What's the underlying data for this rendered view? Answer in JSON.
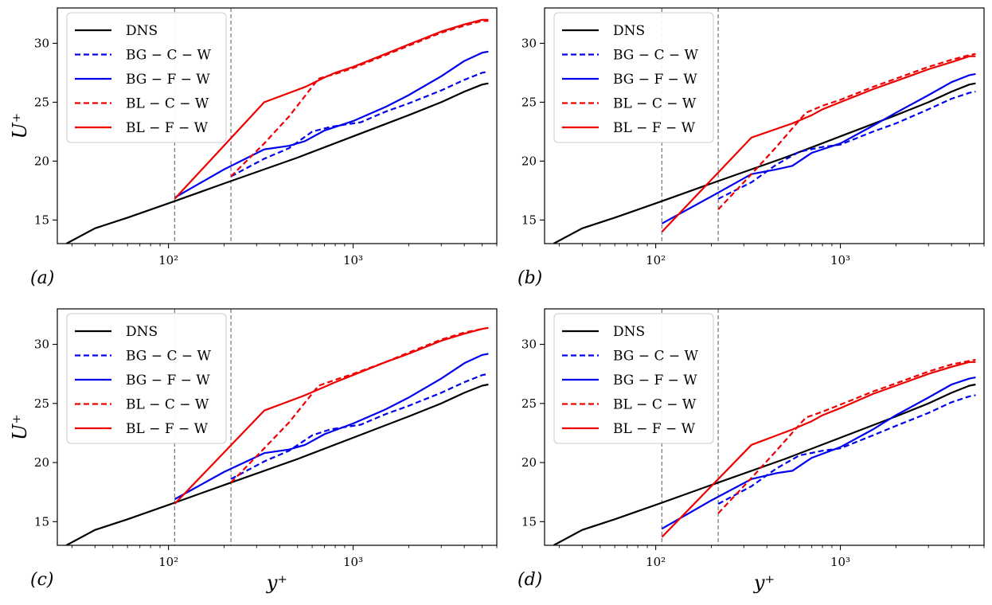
{
  "figure": {
    "ylabel": "U⁺",
    "xlabel": "y⁺"
  },
  "colors": {
    "DNS": "#000000",
    "blue": "#0000ee",
    "red": "#ee0000",
    "guide": "#7f7f7f"
  },
  "legend": [
    {
      "label": "DNS",
      "color": "#000000",
      "dash": "solid"
    },
    {
      "label": "BG − C − W",
      "color": "#0000ee",
      "dash": "dashed"
    },
    {
      "label": "BG − F − W",
      "color": "#0000ee",
      "dash": "solid"
    },
    {
      "label": "BL − C − W",
      "color": "#ee0000",
      "dash": "dashed"
    },
    {
      "label": "BL − F − W",
      "color": "#ee0000",
      "dash": "solid"
    }
  ],
  "chart_data": [
    {
      "panel": "(a)",
      "type": "line",
      "xscale": "log",
      "xlim": [
        25,
        6000
      ],
      "ylim": [
        13,
        33
      ],
      "xticks": [
        {
          "value": 100,
          "label": "10²"
        },
        {
          "value": 1000,
          "label": "10³"
        }
      ],
      "yticks": [
        15,
        20,
        25,
        30
      ],
      "xlabel": "",
      "ylabel": "U⁺",
      "vlines": [
        108,
        218
      ],
      "series": [
        {
          "name": "DNS",
          "x": [
            28,
            40,
            60,
            108,
            200,
            500,
            1000,
            2000,
            3000,
            4000,
            5000,
            5400
          ],
          "y": [
            13.0,
            14.3,
            15.2,
            16.6,
            18.1,
            20.3,
            22.1,
            23.9,
            25.0,
            25.9,
            26.5,
            26.6
          ]
        },
        {
          "name": "BG − C − W",
          "x": [
            218,
            330,
            450,
            600,
            750,
            900,
            1100,
            1500,
            2000,
            3000,
            4000,
            5000,
            5400
          ],
          "y": [
            18.7,
            20.2,
            21.1,
            22.5,
            22.9,
            23.1,
            23.3,
            24.2,
            24.9,
            26.0,
            26.9,
            27.5,
            27.6
          ]
        },
        {
          "name": "BG − F − W",
          "x": [
            108,
            200,
            330,
            450,
            550,
            700,
            1000,
            1500,
            2000,
            3000,
            4000,
            5000,
            5400
          ],
          "y": [
            16.9,
            19.3,
            21.0,
            21.3,
            21.7,
            22.6,
            23.4,
            24.6,
            25.6,
            27.2,
            28.5,
            29.2,
            29.3
          ]
        },
        {
          "name": "BL − C − W",
          "x": [
            218,
            330,
            450,
            650,
            800,
            1000,
            1500,
            2000,
            3000,
            4000,
            5000,
            5400
          ],
          "y": [
            18.7,
            21.5,
            23.8,
            27.0,
            27.4,
            27.9,
            29.0,
            29.8,
            30.9,
            31.5,
            31.9,
            31.9
          ]
        },
        {
          "name": "BL − F − W",
          "x": [
            108,
            330,
            550,
            700,
            800,
            1000,
            1500,
            2000,
            3000,
            4000,
            5000,
            5400
          ],
          "y": [
            16.8,
            25.0,
            26.3,
            27.1,
            27.5,
            28.0,
            29.1,
            29.9,
            31.0,
            31.6,
            32.0,
            32.0
          ]
        }
      ]
    },
    {
      "panel": "(b)",
      "type": "line",
      "xscale": "log",
      "xlim": [
        25,
        6000
      ],
      "ylim": [
        13,
        33
      ],
      "xticks": [
        {
          "value": 100,
          "label": "10²"
        },
        {
          "value": 1000,
          "label": "10³"
        }
      ],
      "yticks": [
        15,
        20,
        25,
        30
      ],
      "xlabel": "",
      "ylabel": "",
      "vlines": [
        108,
        218
      ],
      "series": [
        {
          "name": "DNS",
          "x": [
            28,
            40,
            60,
            108,
            200,
            500,
            1000,
            2000,
            3000,
            4000,
            5000,
            5400
          ],
          "y": [
            13.0,
            14.3,
            15.2,
            16.6,
            18.1,
            20.3,
            22.1,
            23.9,
            25.0,
            25.9,
            26.5,
            26.6
          ]
        },
        {
          "name": "BG − C − W",
          "x": [
            218,
            330,
            450,
            600,
            800,
            1000,
            1500,
            2000,
            3000,
            4000,
            5000,
            5400
          ],
          "y": [
            16.8,
            18.2,
            19.7,
            20.8,
            21.2,
            21.4,
            22.5,
            23.2,
            24.4,
            25.3,
            25.8,
            25.9
          ]
        },
        {
          "name": "BG − F − W",
          "x": [
            108,
            200,
            330,
            450,
            550,
            700,
            1000,
            1500,
            2000,
            3000,
            4000,
            5000,
            5400
          ],
          "y": [
            14.7,
            17.0,
            18.9,
            19.3,
            19.6,
            20.7,
            21.5,
            23.0,
            24.1,
            25.6,
            26.7,
            27.3,
            27.4
          ]
        },
        {
          "name": "BL − C − W",
          "x": [
            218,
            330,
            450,
            650,
            800,
            1000,
            1500,
            2000,
            3000,
            4000,
            5000,
            5400
          ],
          "y": [
            15.9,
            18.9,
            21.2,
            24.1,
            24.7,
            25.2,
            26.3,
            27.0,
            28.0,
            28.6,
            29.0,
            29.1
          ]
        },
        {
          "name": "BL − F − W",
          "x": [
            108,
            330,
            550,
            700,
            800,
            1000,
            1500,
            2000,
            3000,
            4000,
            5000,
            5400
          ],
          "y": [
            14.0,
            22.0,
            23.2,
            23.9,
            24.4,
            25.0,
            26.1,
            26.8,
            27.8,
            28.4,
            28.9,
            28.9
          ]
        }
      ]
    },
    {
      "panel": "(c)",
      "type": "line",
      "xscale": "log",
      "xlim": [
        25,
        6000
      ],
      "ylim": [
        13,
        33
      ],
      "xticks": [
        {
          "value": 100,
          "label": "10²"
        },
        {
          "value": 1000,
          "label": "10³"
        }
      ],
      "yticks": [
        15,
        20,
        25,
        30
      ],
      "xlabel": "y⁺",
      "ylabel": "U⁺",
      "vlines": [
        108,
        218
      ],
      "series": [
        {
          "name": "DNS",
          "x": [
            28,
            40,
            60,
            108,
            200,
            500,
            1000,
            2000,
            3000,
            4000,
            5000,
            5400
          ],
          "y": [
            13.0,
            14.3,
            15.2,
            16.6,
            18.1,
            20.3,
            22.1,
            23.9,
            25.0,
            25.9,
            26.5,
            26.6
          ]
        },
        {
          "name": "BG − C − W",
          "x": [
            218,
            330,
            450,
            600,
            750,
            900,
            1100,
            1500,
            2000,
            3000,
            4000,
            5000,
            5400
          ],
          "y": [
            18.6,
            20.1,
            21.0,
            22.3,
            22.8,
            23.0,
            23.2,
            24.1,
            24.8,
            25.9,
            26.8,
            27.4,
            27.5
          ]
        },
        {
          "name": "BG − F − W",
          "x": [
            108,
            200,
            330,
            450,
            550,
            700,
            1000,
            1500,
            2000,
            3000,
            4000,
            5000,
            5400
          ],
          "y": [
            16.9,
            19.2,
            20.8,
            21.1,
            21.5,
            22.4,
            23.3,
            24.5,
            25.5,
            27.1,
            28.4,
            29.1,
            29.2
          ]
        },
        {
          "name": "BL − C − W",
          "x": [
            218,
            330,
            450,
            650,
            800,
            1000,
            1500,
            2000,
            3000,
            4000,
            5000,
            5400
          ],
          "y": [
            18.3,
            21.2,
            23.4,
            26.5,
            27.0,
            27.5,
            28.5,
            29.3,
            30.4,
            31.0,
            31.3,
            31.4
          ]
        },
        {
          "name": "BL − F − W",
          "x": [
            108,
            330,
            550,
            700,
            800,
            1000,
            1500,
            2000,
            3000,
            4000,
            5000,
            5400
          ],
          "y": [
            16.5,
            24.4,
            25.7,
            26.4,
            26.8,
            27.4,
            28.5,
            29.2,
            30.3,
            30.9,
            31.3,
            31.4
          ]
        }
      ]
    },
    {
      "panel": "(d)",
      "type": "line",
      "xscale": "log",
      "xlim": [
        25,
        6000
      ],
      "ylim": [
        13,
        33
      ],
      "xticks": [
        {
          "value": 100,
          "label": "10²"
        },
        {
          "value": 1000,
          "label": "10³"
        }
      ],
      "yticks": [
        15,
        20,
        25,
        30
      ],
      "xlabel": "y⁺",
      "ylabel": "",
      "vlines": [
        108,
        218
      ],
      "series": [
        {
          "name": "DNS",
          "x": [
            28,
            40,
            60,
            108,
            200,
            500,
            1000,
            2000,
            3000,
            4000,
            5000,
            5400
          ],
          "y": [
            13.0,
            14.3,
            15.2,
            16.6,
            18.1,
            20.3,
            22.1,
            23.9,
            25.0,
            25.9,
            26.5,
            26.6
          ]
        },
        {
          "name": "BG − C − W",
          "x": [
            218,
            330,
            450,
            600,
            800,
            1000,
            1500,
            2000,
            3000,
            4000,
            5000,
            5400
          ],
          "y": [
            16.5,
            18.0,
            19.5,
            20.6,
            21.0,
            21.2,
            22.3,
            23.1,
            24.2,
            25.1,
            25.6,
            25.7
          ]
        },
        {
          "name": "BG − F − W",
          "x": [
            108,
            200,
            330,
            450,
            550,
            700,
            1000,
            1500,
            2000,
            3000,
            4000,
            5000,
            5400
          ],
          "y": [
            14.4,
            16.8,
            18.6,
            19.1,
            19.3,
            20.4,
            21.3,
            22.8,
            24.0,
            25.5,
            26.6,
            27.1,
            27.2
          ]
        },
        {
          "name": "BL − C − W",
          "x": [
            218,
            330,
            450,
            650,
            800,
            1000,
            1500,
            2000,
            3000,
            4000,
            5000,
            5400
          ],
          "y": [
            15.7,
            18.7,
            21.0,
            23.8,
            24.3,
            24.9,
            26.0,
            26.7,
            27.7,
            28.3,
            28.6,
            28.7
          ]
        },
        {
          "name": "BL − F − W",
          "x": [
            108,
            330,
            550,
            700,
            800,
            1000,
            1500,
            2000,
            3000,
            4000,
            5000,
            5400
          ],
          "y": [
            13.7,
            21.5,
            22.8,
            23.5,
            24.0,
            24.6,
            25.8,
            26.5,
            27.5,
            28.1,
            28.5,
            28.5
          ]
        }
      ]
    }
  ]
}
